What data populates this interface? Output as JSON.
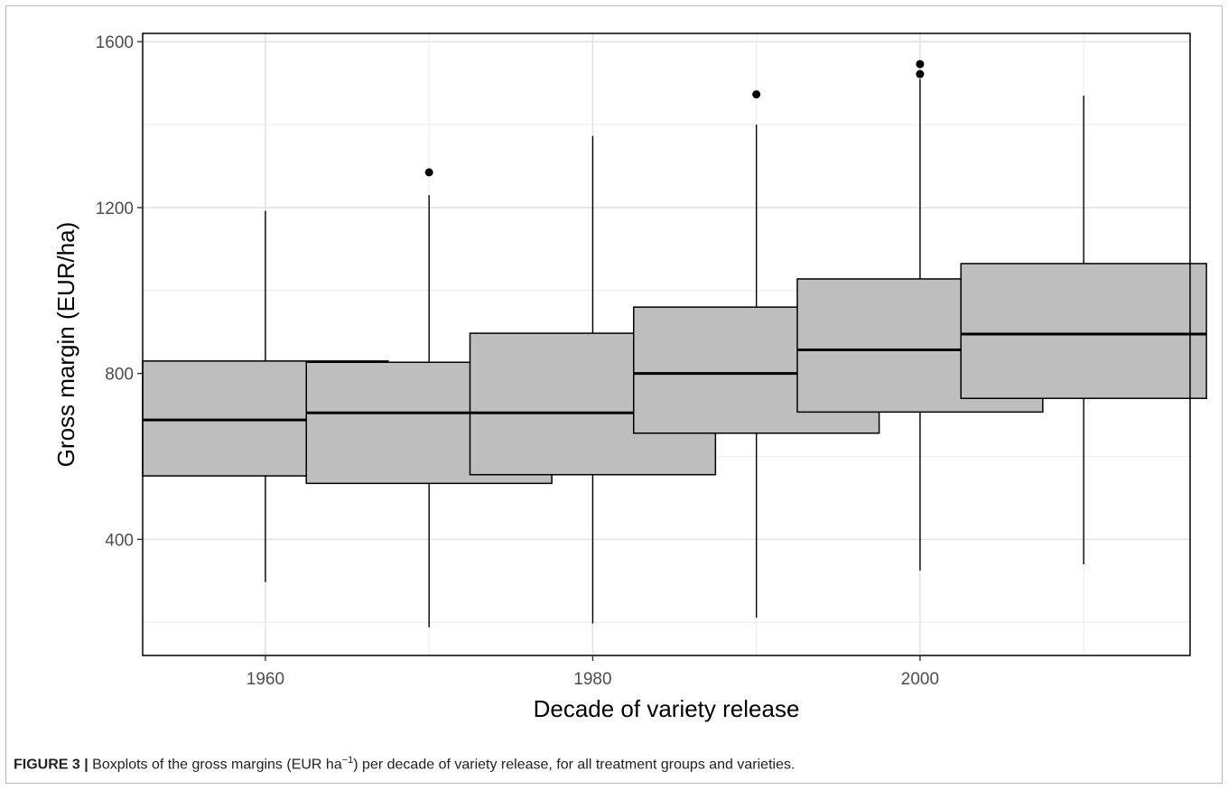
{
  "chart_data": {
    "type": "boxplot",
    "xlabel": "Decade of variety release",
    "ylabel": "Gross margin (EUR/ha)",
    "x_ticks": [
      1960,
      1980,
      2000
    ],
    "y_ticks": [
      400,
      800,
      1200,
      1600
    ],
    "xlim": [
      1952.5,
      2016.5
    ],
    "ylim": [
      120,
      1620
    ],
    "grid": true,
    "box_fill": "#bebebe",
    "boxes": [
      {
        "x": 1960,
        "q1": 553,
        "median": 688,
        "q3": 830,
        "whisker_low": 297,
        "whisker_high": 1192,
        "outliers": []
      },
      {
        "x": 1970,
        "q1": 535,
        "median": 705,
        "q3": 827,
        "whisker_low": 188,
        "whisker_high": 1230,
        "outliers": [
          1285
        ]
      },
      {
        "x": 1980,
        "q1": 556,
        "median": 705,
        "q3": 897,
        "whisker_low": 197,
        "whisker_high": 1373,
        "outliers": []
      },
      {
        "x": 1990,
        "q1": 656,
        "median": 800,
        "q3": 960,
        "whisker_low": 211,
        "whisker_high": 1400,
        "outliers": [
          1473
        ]
      },
      {
        "x": 2000,
        "q1": 707,
        "median": 857,
        "q3": 1028,
        "whisker_low": 325,
        "whisker_high": 1510,
        "outliers": [
          1522,
          1546
        ]
      },
      {
        "x": 2010,
        "q1": 740,
        "median": 895,
        "q3": 1065,
        "whisker_low": 340,
        "whisker_high": 1470,
        "outliers": []
      }
    ]
  },
  "caption": {
    "label": "FIGURE 3 |",
    "text_before": " Boxplots of the gross margins (EUR ha",
    "superscript": "−1",
    "text_after": ") per decade of variety release, for all treatment groups and varieties."
  }
}
